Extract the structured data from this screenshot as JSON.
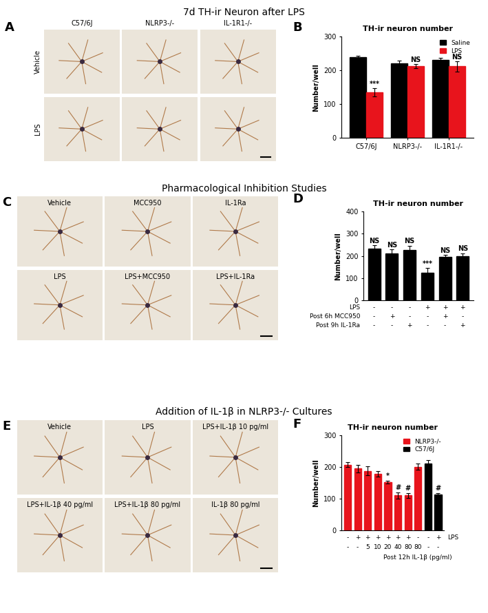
{
  "sections": [
    {
      "title": "7d TH-ir Neuron after LPS",
      "image_panel": {
        "letter": "A",
        "columns": [
          "C57/6J",
          "NLRP3-/-",
          "IL-1R1-/-"
        ],
        "rows": [
          "Vehicle",
          "LPS"
        ]
      }
    },
    {
      "title": "Pharmacological Inhibition Studies",
      "image_panel": {
        "letter": "C",
        "labels": [
          [
            "Vehicle",
            "MCC950",
            "IL-1Ra"
          ],
          [
            "LPS",
            "LPS+MCC950",
            "LPS+IL-1Ra"
          ]
        ]
      }
    },
    {
      "title": "Addition of IL-1β in NLRP3-/- Cultures",
      "image_panel": {
        "letter": "E",
        "labels": [
          [
            "Vehicle",
            "LPS",
            "LPS+IL-1β 10 pg/ml"
          ],
          [
            "LPS+IL-1β 40 pg/ml",
            "LPS+IL-1β 80 pg/ml",
            "IL-1β 80 pg/ml"
          ]
        ]
      }
    }
  ],
  "chart_data": [
    {
      "panel": "B",
      "type": "bar",
      "title": "TH-ir neuron number",
      "y_label": "Number/well",
      "categories": [
        "C57/6J",
        "NLRP3-/-",
        "IL-1R1-/-"
      ],
      "series": [
        {
          "name": "Saline",
          "color": "#000000",
          "values": [
            240,
            222,
            232
          ],
          "errors": [
            3,
            8,
            5
          ],
          "significance": [
            null,
            null,
            null
          ]
        },
        {
          "name": "LPS",
          "color": "#e8141c",
          "values": [
            135,
            213,
            212
          ],
          "errors": [
            12,
            6,
            15
          ],
          "significance": [
            "***",
            "NS",
            "NS"
          ]
        }
      ],
      "ylim": [
        0,
        300
      ],
      "yticks": [
        0,
        100,
        200,
        300
      ],
      "legend": "upper right"
    },
    {
      "panel": "D",
      "type": "bar",
      "title": "TH-ir neuron number",
      "y_label": "Number/well",
      "categories": [
        null,
        null,
        null,
        null,
        null,
        null
      ],
      "series": [
        {
          "color": "#000000",
          "values": [
            232,
            212,
            226,
            125,
            195,
            200
          ],
          "errors": [
            15,
            18,
            20,
            20,
            10,
            12
          ],
          "significance": [
            "NS",
            "NS",
            "NS",
            "***",
            "NS",
            "NS"
          ]
        }
      ],
      "conditions": [
        {
          "label": "LPS",
          "marks": [
            "-",
            "-",
            "-",
            "+",
            "+",
            "+"
          ]
        },
        {
          "label": "Post 6h MCC950",
          "marks": [
            "-",
            "+",
            "-",
            "-",
            "+",
            "-"
          ]
        },
        {
          "label": "Post 9h IL-1Ra",
          "marks": [
            "-",
            "-",
            "+",
            "-",
            "-",
            "+"
          ]
        }
      ],
      "ylim": [
        0,
        400
      ],
      "yticks": [
        0,
        100,
        200,
        300,
        400
      ]
    },
    {
      "panel": "F",
      "type": "bar",
      "title": "TH-ir neuron number",
      "y_label": "Number/well",
      "categories": [
        null,
        null,
        null,
        null,
        null,
        null,
        null,
        null,
        null,
        null
      ],
      "series": [
        {
          "name": "NLRP3-/-",
          "color": "#e8141c",
          "values": [
            207,
            195,
            187,
            178,
            152,
            110,
            110,
            200,
            null,
            null
          ],
          "errors": [
            8,
            12,
            14,
            8,
            5,
            10,
            8,
            10,
            null,
            null
          ],
          "significance": [
            null,
            null,
            null,
            null,
            "*",
            "#",
            "#",
            null,
            null,
            null
          ]
        },
        {
          "name": "C57/6J",
          "color": "#000000",
          "values": [
            null,
            null,
            null,
            null,
            null,
            null,
            null,
            null,
            210,
            112
          ],
          "errors": [
            null,
            null,
            null,
            null,
            null,
            null,
            null,
            null,
            12,
            6
          ],
          "significance": [
            null,
            null,
            null,
            null,
            null,
            null,
            null,
            null,
            null,
            "#"
          ]
        }
      ],
      "conditions": [
        {
          "label": "LPS",
          "marks": [
            "-",
            "+",
            "+",
            "+",
            "+",
            "+",
            "+",
            "-",
            "-",
            "+"
          ]
        },
        {
          "label": "Post 12h IL-1β (pg/ml)",
          "marks": [
            "-",
            "-",
            "5",
            "10",
            "20",
            "40",
            "80",
            "80",
            "-",
            "-"
          ]
        }
      ],
      "ylim": [
        0,
        300
      ],
      "yticks": [
        0,
        100,
        200,
        300
      ],
      "legend": "upper right"
    }
  ]
}
